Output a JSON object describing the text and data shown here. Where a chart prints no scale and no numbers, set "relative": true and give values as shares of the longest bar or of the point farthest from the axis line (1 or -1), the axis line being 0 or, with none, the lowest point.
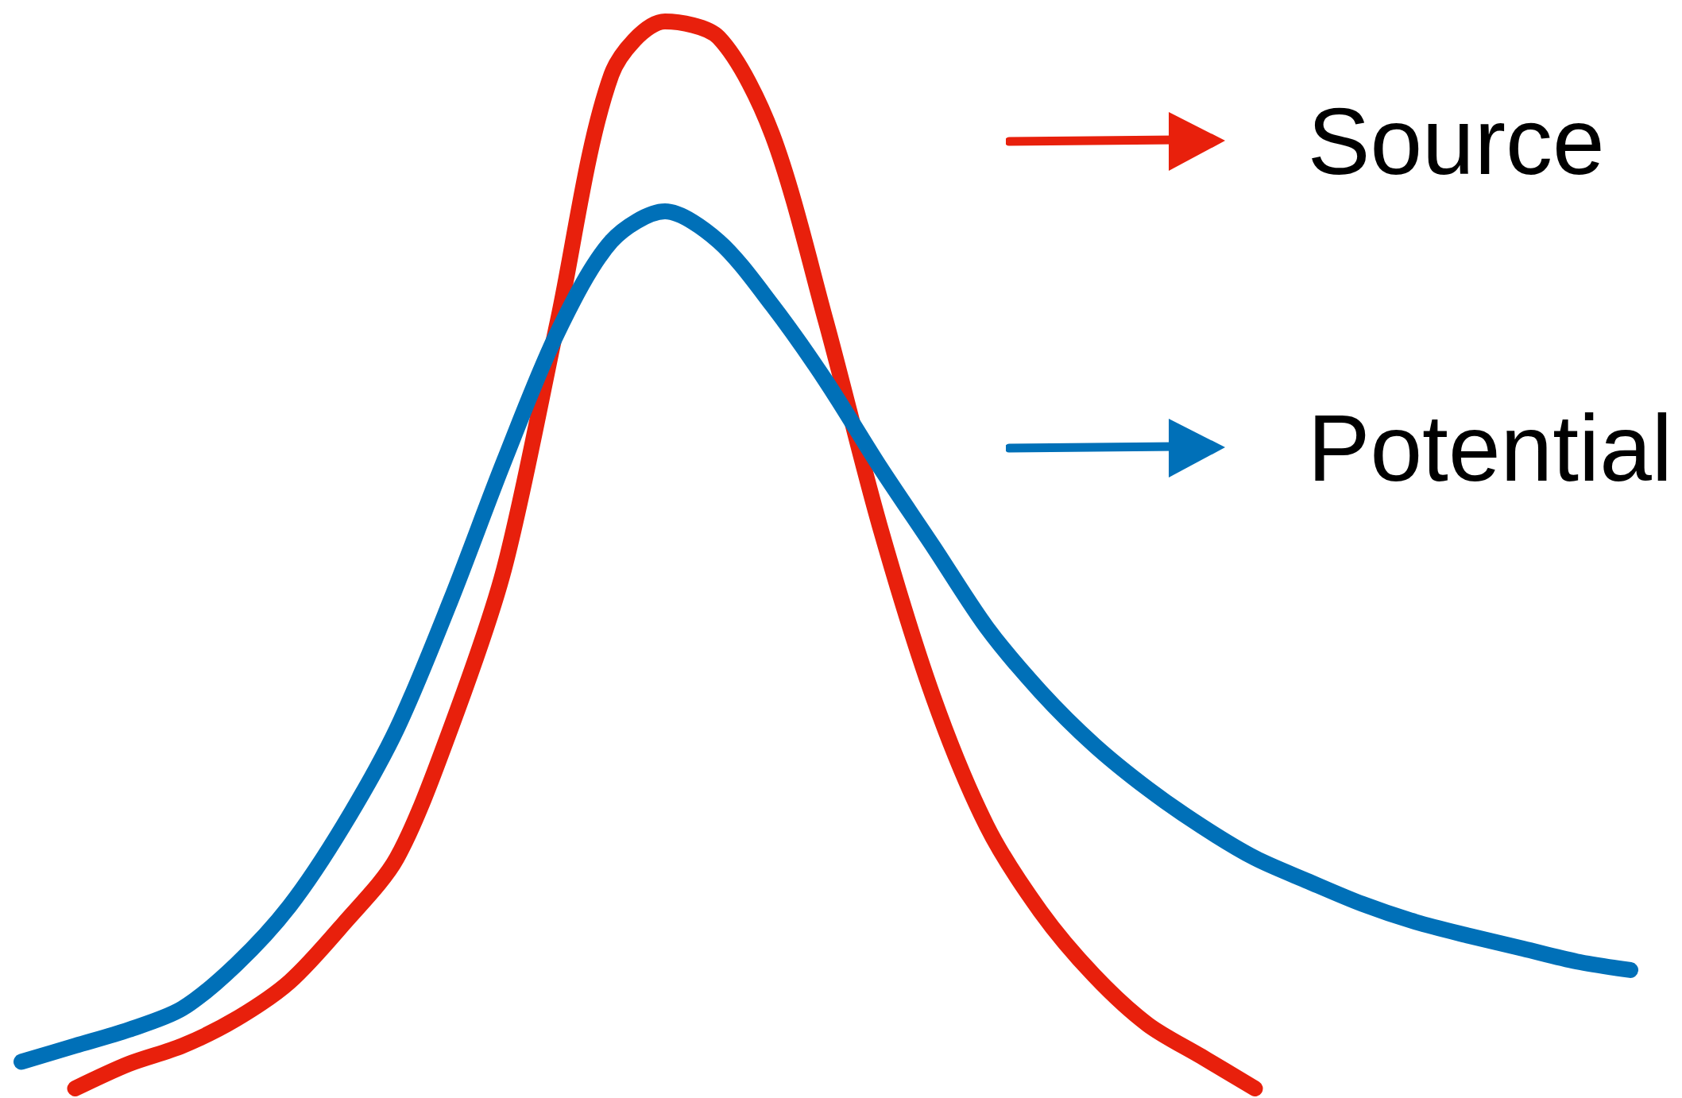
{
  "chart_data": {
    "type": "line",
    "relative": true,
    "legend": "top right",
    "marker": "none",
    "line_style": "solid",
    "categories": [
      null,
      null,
      null,
      null,
      null,
      null,
      null,
      null,
      null,
      null,
      null,
      null,
      null,
      null,
      null,
      null,
      null,
      null,
      null,
      null,
      null,
      null,
      null,
      null,
      null,
      null,
      null,
      null,
      null,
      null,
      null
    ],
    "series": [
      {
        "name": "Source",
        "color": "#e8200c",
        "values": [
          null,
          0.0,
          0.023,
          0.04,
          0.065,
          0.1,
          0.154,
          0.216,
          0.337,
          0.487,
          0.719,
          0.95,
          1,
          0.985,
          0.894,
          0.719,
          0.528,
          0.367,
          0.246,
          0.166,
          0.106,
          0.06,
          0.03,
          0.0,
          null,
          null,
          null,
          null,
          null,
          null,
          null
        ]
      },
      {
        "name": "Potential",
        "color": "#0070b8",
        "values": [
          0.025,
          0.04,
          0.055,
          0.075,
          0.116,
          0.171,
          0.246,
          0.337,
          0.457,
          0.588,
          0.709,
          0.794,
          0.822,
          0.794,
          0.734,
          0.663,
          0.583,
          0.508,
          0.432,
          0.372,
          0.322,
          0.281,
          0.246,
          0.216,
          0.194,
          0.173,
          0.156,
          0.143,
          0.131,
          0.119,
          0.111
        ]
      }
    ]
  }
}
